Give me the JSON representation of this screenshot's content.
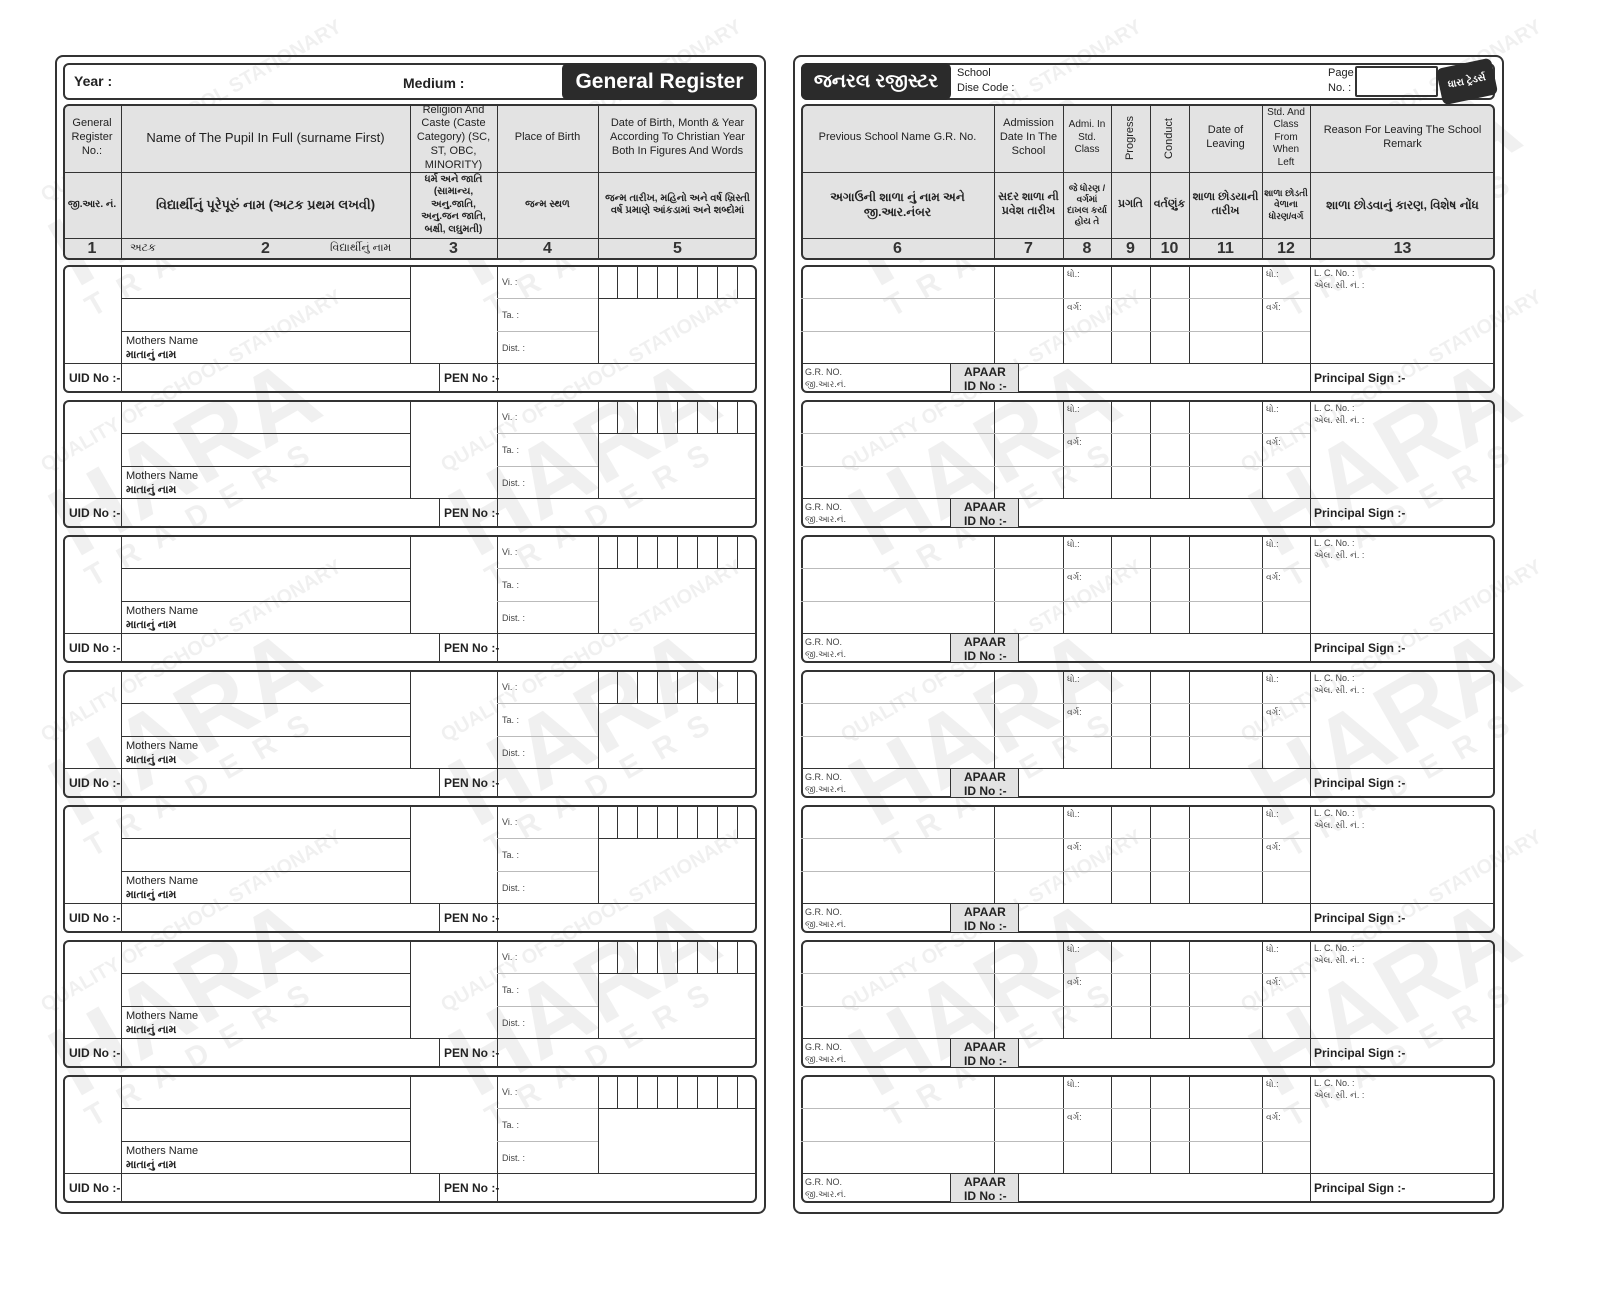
{
  "left_page": {
    "year_label": "Year :",
    "medium_label": "Medium :",
    "title": "General Register",
    "columns": [
      {
        "en": "General Register No.:",
        "gu": "જી.આર. નં.",
        "num": "1"
      },
      {
        "en": "Name of The Pupil In Full (surname First)",
        "gu": "વિદ્યાર્થીનું પૂરેપૂરું નામ (અટક પ્રથમ લખવી)",
        "num": "2",
        "num_left": "અટક",
        "num_right": "વિદ્યાર્થીનું નામ"
      },
      {
        "en": "Religion And Caste (Caste Category) (SC, ST, OBC, MINORITY)",
        "gu": "ધર્મ અને જાતિ (સામાન્ય, અનુ.જાતિ, અનુ.જન જાતિ, બક્ષી, લઘુમતી)",
        "num": "3"
      },
      {
        "en": "Place of Birth",
        "gu": "જન્મ સ્થળ",
        "num": "4"
      },
      {
        "en": "Date of Birth, Month & Year According To Christian Year Both In Figures And Words",
        "gu": "જન્મ તારીખ, મહિનો અને વર્ષ ખ્રિસ્તી વર્ષ પ્રમાણે આંકડામાં અને શબ્દોમાં",
        "num": "5"
      }
    ],
    "record": {
      "mothers_name_en": "Mothers Name",
      "mothers_name_gu": "માતાનું નામ",
      "village": "Vi. :",
      "taluka": "Ta. :",
      "district": "Dist. :",
      "uid": "UID No :-",
      "pen": "PEN No :-"
    }
  },
  "right_page": {
    "title": "જનરલ રજીસ્ટર",
    "school_label": "School",
    "dise_label": "Dise Code :",
    "page_label": "Page",
    "page_no_label": "No. :",
    "brand": "ધારા ટ્રેડર્સ",
    "columns": [
      {
        "en": "Previous School Name G.R. No.",
        "gu": "અગાઉની શાળા નું નામ અને જી.આર.નંબર",
        "num": "6"
      },
      {
        "en": "Admission Date In The School",
        "gu": "સદર શાળા ની પ્રવેશ તારીખ",
        "num": "7"
      },
      {
        "en": "Admi. In Std. Class",
        "gu": "જે ધોરણ / વર્ગમાં દાખલ કર્યા હોય તે",
        "num": "8"
      },
      {
        "en": "Progress",
        "gu": "પ્રગતિ",
        "num": "9"
      },
      {
        "en": "Conduct",
        "gu": "વર્તણુંક",
        "num": "10"
      },
      {
        "en": "Date of Leaving",
        "gu": "શાળા છોડયાની તારીખ",
        "num": "11"
      },
      {
        "en": "Std. And Class From When Left",
        "gu": "શાળા છોડતી વેળાના ધોરણ/વર્ગ",
        "num": "12"
      },
      {
        "en": "Reason For Leaving The School Remark",
        "gu": "શાળા છોડવાનું કારણ, વિશેષ નોંધ",
        "num": "13"
      }
    ],
    "record": {
      "std": "ધો.:",
      "class": "વર્ગ:",
      "lc_no_en": "L. C. No. :",
      "lc_no_gu": "એલ. સી. નં. :",
      "gr_no_en": "G.R. NO.",
      "gr_no_gu": "જી.આર.નં.",
      "apaar": "APAAR",
      "apaar_id": "ID No :-",
      "principal_sign": "Principal Sign :-"
    }
  },
  "watermark": {
    "line1": "QUALITY OF SCHOOL STATIONARY",
    "line2": "HARA",
    "line3": "TRADERS"
  },
  "colors": {
    "header_fill": "#e3e3e3",
    "title_fill": "#2b2b2b",
    "border": "#333333"
  }
}
